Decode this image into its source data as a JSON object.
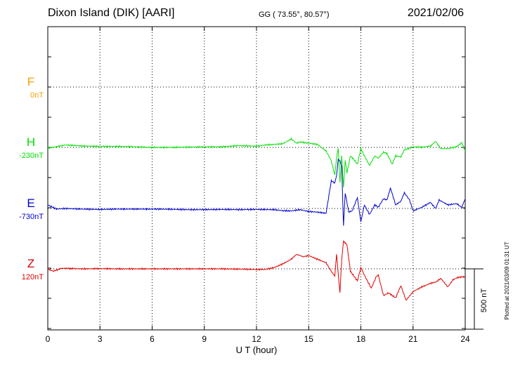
{
  "header": {
    "station": "Dixon Island (DIK)  [AARI]",
    "coords": "GG ( 73.55°,  80.57°)",
    "date": "2021/02/06"
  },
  "plotted_note": "Plotted at 2021/03/09 01:31  UT",
  "colors": {
    "F": "#f5a000",
    "H": "#00e000",
    "E": "#0000d0",
    "Z": "#e00000",
    "axis": "#000000"
  },
  "chart_data": {
    "type": "line",
    "xlabel": "U T (hour)",
    "xlim": [
      0,
      24
    ],
    "x_ticks": [
      0,
      3,
      6,
      9,
      12,
      15,
      18,
      21,
      24
    ],
    "scale_bar_label": "500 nT",
    "scale_bar_value": 500,
    "grid": "dotted",
    "series": [
      {
        "name": "F",
        "key": "F",
        "baseline_label": "0nT",
        "points": []
      },
      {
        "name": "H",
        "key": "H",
        "baseline_label": "-230nT",
        "points": [
          [
            0,
            -235
          ],
          [
            0.5,
            -225
          ],
          [
            1,
            -210
          ],
          [
            2,
            -218
          ],
          [
            3,
            -222
          ],
          [
            4,
            -222
          ],
          [
            5,
            -225
          ],
          [
            6,
            -230
          ],
          [
            7,
            -230
          ],
          [
            8,
            -228
          ],
          [
            9,
            -226
          ],
          [
            10,
            -225
          ],
          [
            11,
            -215
          ],
          [
            12,
            -220
          ],
          [
            12.5,
            -210
          ],
          [
            13,
            -205
          ],
          [
            13.5,
            -200
          ],
          [
            14,
            -160
          ],
          [
            14.3,
            -195
          ],
          [
            14.5,
            -185
          ],
          [
            15,
            -195
          ],
          [
            15.5,
            -205
          ],
          [
            16,
            -260
          ],
          [
            16.3,
            -340
          ],
          [
            16.5,
            -460
          ],
          [
            16.6,
            -320
          ],
          [
            16.7,
            -240
          ],
          [
            16.8,
            -520
          ],
          [
            16.9,
            -300
          ],
          [
            17.0,
            -560
          ],
          [
            17.1,
            -340
          ],
          [
            17.2,
            -440
          ],
          [
            17.4,
            -300
          ],
          [
            17.6,
            -330
          ],
          [
            17.8,
            -370
          ],
          [
            18,
            -240
          ],
          [
            18.2,
            -300
          ],
          [
            18.5,
            -380
          ],
          [
            18.8,
            -300
          ],
          [
            19,
            -320
          ],
          [
            19.3,
            -270
          ],
          [
            19.5,
            -280
          ],
          [
            19.8,
            -370
          ],
          [
            20,
            -300
          ],
          [
            20.3,
            -310
          ],
          [
            20.5,
            -250
          ],
          [
            21,
            -226
          ],
          [
            21.5,
            -228
          ],
          [
            22,
            -220
          ],
          [
            22.3,
            -180
          ],
          [
            22.6,
            -240
          ],
          [
            23,
            -240
          ],
          [
            23.5,
            -225
          ],
          [
            23.8,
            -190
          ],
          [
            24,
            -260
          ]
        ]
      },
      {
        "name": "E",
        "key": "E",
        "baseline_label": "-730nT",
        "points": [
          [
            0,
            -700
          ],
          [
            0.5,
            -735
          ],
          [
            1,
            -730
          ],
          [
            2,
            -735
          ],
          [
            3,
            -738
          ],
          [
            4,
            -735
          ],
          [
            5,
            -735
          ],
          [
            6,
            -735
          ],
          [
            7,
            -736
          ],
          [
            8,
            -740
          ],
          [
            9,
            -740
          ],
          [
            10,
            -738
          ],
          [
            11,
            -740
          ],
          [
            12,
            -738
          ],
          [
            13,
            -740
          ],
          [
            13.5,
            -748
          ],
          [
            14,
            -750
          ],
          [
            14.5,
            -740
          ],
          [
            15,
            -755
          ],
          [
            15.5,
            -760
          ],
          [
            16,
            -770
          ],
          [
            16.3,
            -500
          ],
          [
            16.5,
            -520
          ],
          [
            16.6,
            -460
          ],
          [
            16.7,
            -320
          ],
          [
            16.8,
            -340
          ],
          [
            16.9,
            -380
          ],
          [
            17.0,
            -880
          ],
          [
            17.1,
            -600
          ],
          [
            17.3,
            -760
          ],
          [
            17.5,
            -750
          ],
          [
            17.8,
            -640
          ],
          [
            18,
            -840
          ],
          [
            18.2,
            -700
          ],
          [
            18.5,
            -780
          ],
          [
            18.8,
            -700
          ],
          [
            19,
            -720
          ],
          [
            19.3,
            -650
          ],
          [
            19.5,
            -660
          ],
          [
            19.7,
            -560
          ],
          [
            20,
            -700
          ],
          [
            20.3,
            -670
          ],
          [
            20.5,
            -600
          ],
          [
            20.8,
            -660
          ],
          [
            21,
            -750
          ],
          [
            21.5,
            -720
          ],
          [
            22,
            -680
          ],
          [
            22.3,
            -730
          ],
          [
            22.5,
            -660
          ],
          [
            23,
            -700
          ],
          [
            23.5,
            -690
          ],
          [
            23.8,
            -720
          ],
          [
            24,
            -650
          ]
        ]
      },
      {
        "name": "Z",
        "key": "Z",
        "baseline_label": "120nT",
        "points": [
          [
            0,
            120
          ],
          [
            0.3,
            100
          ],
          [
            0.8,
            125
          ],
          [
            2,
            120
          ],
          [
            3,
            122
          ],
          [
            4,
            120
          ],
          [
            5,
            120
          ],
          [
            6,
            120
          ],
          [
            7,
            120
          ],
          [
            8,
            120
          ],
          [
            9,
            120
          ],
          [
            10,
            120
          ],
          [
            11,
            118
          ],
          [
            12,
            115
          ],
          [
            12.5,
            115
          ],
          [
            13,
            130
          ],
          [
            13.5,
            160
          ],
          [
            14,
            200
          ],
          [
            14.3,
            240
          ],
          [
            14.7,
            220
          ],
          [
            15,
            230
          ],
          [
            15.5,
            200
          ],
          [
            16,
            170
          ],
          [
            16.3,
            100
          ],
          [
            16.5,
            60
          ],
          [
            16.6,
            240
          ],
          [
            16.7,
            80
          ],
          [
            16.8,
            -80
          ],
          [
            16.9,
            200
          ],
          [
            17.0,
            350
          ],
          [
            17.2,
            320
          ],
          [
            17.4,
            100
          ],
          [
            17.6,
            60
          ],
          [
            17.8,
            20
          ],
          [
            18,
            130
          ],
          [
            18.3,
            40
          ],
          [
            18.6,
            -40
          ],
          [
            18.9,
            60
          ],
          [
            19,
            70
          ],
          [
            19.3,
            -100
          ],
          [
            19.6,
            -80
          ],
          [
            20,
            -120
          ],
          [
            20.3,
            -20
          ],
          [
            20.6,
            -140
          ],
          [
            21,
            -70
          ],
          [
            21.5,
            -30
          ],
          [
            22,
            0
          ],
          [
            22.3,
            10
          ],
          [
            22.6,
            40
          ],
          [
            23,
            -30
          ],
          [
            23.3,
            30
          ],
          [
            23.6,
            50
          ],
          [
            24,
            55
          ]
        ]
      }
    ]
  }
}
